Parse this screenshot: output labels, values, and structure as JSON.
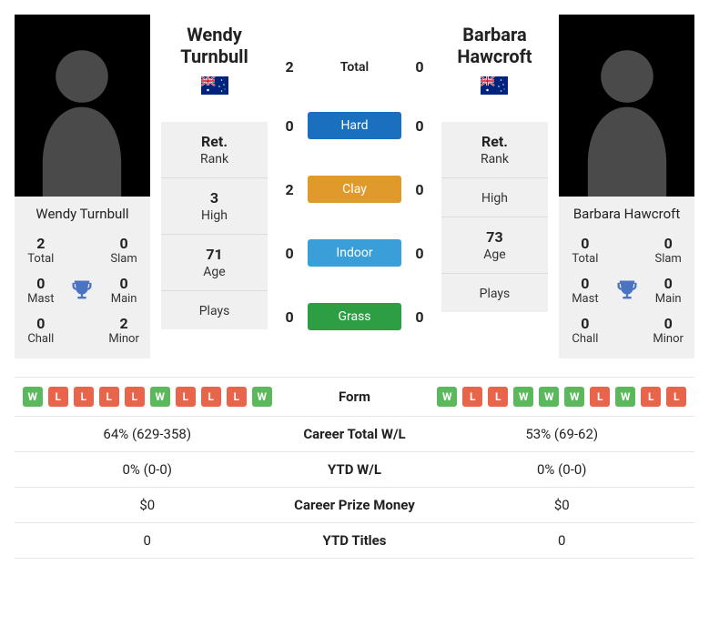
{
  "colors": {
    "win": "#5cb85c",
    "loss": "#e9644a",
    "trophy": "#4a73c4",
    "surfaces": {
      "hard": "#1a6fbf",
      "clay": "#e09a2b",
      "indoor": "#3a9fd8",
      "grass": "#2e9e44"
    }
  },
  "player1": {
    "name": "Wendy Turnbull",
    "short_name": "Wendy\nTurnbull",
    "country": "australia",
    "titles": {
      "total": {
        "value": "2",
        "label": "Total"
      },
      "slam": {
        "value": "0",
        "label": "Slam"
      },
      "mast": {
        "value": "0",
        "label": "Mast"
      },
      "main": {
        "value": "0",
        "label": "Main"
      },
      "chall": {
        "value": "0",
        "label": "Chall"
      },
      "minor": {
        "value": "2",
        "label": "Minor"
      }
    },
    "rank": {
      "value": "Ret.",
      "label": "Rank"
    },
    "high": {
      "value": "3",
      "label": "High"
    },
    "age": {
      "value": "71",
      "label": "Age"
    },
    "plays": {
      "value": "",
      "label": "Plays"
    }
  },
  "player2": {
    "name": "Barbara Hawcroft",
    "short_name": "Barbara\nHawcroft",
    "country": "australia",
    "titles": {
      "total": {
        "value": "0",
        "label": "Total"
      },
      "slam": {
        "value": "0",
        "label": "Slam"
      },
      "mast": {
        "value": "0",
        "label": "Mast"
      },
      "main": {
        "value": "0",
        "label": "Main"
      },
      "chall": {
        "value": "0",
        "label": "Chall"
      },
      "minor": {
        "value": "0",
        "label": "Minor"
      }
    },
    "rank": {
      "value": "Ret.",
      "label": "Rank"
    },
    "high": {
      "value": "",
      "label": "High"
    },
    "age": {
      "value": "73",
      "label": "Age"
    },
    "plays": {
      "value": "",
      "label": "Plays"
    }
  },
  "h2h": {
    "total": {
      "label": "Total",
      "p1": "2",
      "p2": "0"
    },
    "surfaces": [
      {
        "key": "hard",
        "label": "Hard",
        "p1": "0",
        "p2": "0"
      },
      {
        "key": "clay",
        "label": "Clay",
        "p1": "2",
        "p2": "0"
      },
      {
        "key": "indoor",
        "label": "Indoor",
        "p1": "0",
        "p2": "0"
      },
      {
        "key": "grass",
        "label": "Grass",
        "p1": "0",
        "p2": "0"
      }
    ]
  },
  "compare": {
    "form": {
      "label": "Form",
      "p1": [
        "W",
        "L",
        "L",
        "L",
        "L",
        "W",
        "L",
        "L",
        "L",
        "W"
      ],
      "p2": [
        "W",
        "L",
        "L",
        "W",
        "W",
        "W",
        "L",
        "W",
        "L",
        "L"
      ]
    },
    "rows": [
      {
        "label": "Career Total W/L",
        "p1": "64% (629-358)",
        "p2": "53% (69-62)"
      },
      {
        "label": "YTD W/L",
        "p1": "0% (0-0)",
        "p2": "0% (0-0)"
      },
      {
        "label": "Career Prize Money",
        "p1": "$0",
        "p2": "$0"
      },
      {
        "label": "YTD Titles",
        "p1": "0",
        "p2": "0"
      }
    ]
  }
}
